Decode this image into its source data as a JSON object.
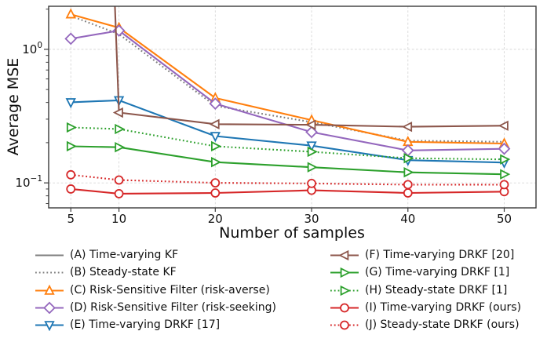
{
  "chart_data": {
    "type": "line",
    "title": "",
    "xlabel": "Number of samples",
    "ylabel": "Average MSE",
    "xscale": "linear",
    "yscale": "log",
    "x": [
      5,
      10,
      20,
      30,
      40,
      50
    ],
    "xticks": [
      5,
      10,
      20,
      30,
      40,
      50
    ],
    "xlim": [
      2.7,
      53.3
    ],
    "ylim": [
      0.065,
      2.1
    ],
    "ytick_values": [
      1,
      0.1
    ],
    "ytick_labels": [
      "10⁰",
      "10⁻¹"
    ],
    "ytick_exponents": [
      0,
      -1
    ],
    "grid": true,
    "grid_style": "dashed light gray at x ticks and decade y ticks",
    "series": [
      {
        "id": "A",
        "label": "(A) Time-varying KF",
        "color": "#7f7f7f",
        "line": "solid",
        "marker": "none",
        "values": [
          null,
          null,
          null,
          null,
          null,
          null
        ],
        "note": "lies above visible y-range; not drawn inside axes"
      },
      {
        "id": "B",
        "label": "(B) Steady-state KF",
        "color": "#7f7f7f",
        "line": "dotted",
        "marker": "none",
        "values": [
          1.78,
          1.3,
          0.377,
          0.285,
          0.207,
          0.203
        ]
      },
      {
        "id": "C",
        "label": "(C) Risk-Sensitive Filter (risk-averse)",
        "color": "#ff7f0e",
        "line": "solid",
        "marker": "triangle-up",
        "values": [
          1.83,
          1.45,
          0.432,
          0.295,
          0.203,
          0.197
        ]
      },
      {
        "id": "D",
        "label": "(D) Risk-Sensitive Filter (risk-seeking)",
        "color": "#9467bd",
        "line": "solid",
        "marker": "diamond",
        "values": [
          1.2,
          1.38,
          0.392,
          0.24,
          0.175,
          0.18
        ]
      },
      {
        "id": "E",
        "label": "(E) Time-varying DRKF [17]",
        "color": "#1f77b4",
        "line": "solid",
        "marker": "triangle-down",
        "values": [
          0.401,
          0.415,
          0.224,
          0.19,
          0.148,
          0.142
        ]
      },
      {
        "id": "F",
        "label": "(F) Time-varying DRKF [20]",
        "color": "#8c564b",
        "line": "solid",
        "marker": "triangle-left",
        "values": [
          1000000000,
          0.336,
          0.275,
          0.272,
          0.263,
          0.268
        ],
        "note": "first point (n=5) far off-scale; line enters plot near-vertically just left of n=10"
      },
      {
        "id": "G",
        "label": "(G) Time-varying DRKF [1]",
        "color": "#2ca02c",
        "line": "solid",
        "marker": "triangle-right",
        "values": [
          0.188,
          0.185,
          0.143,
          0.131,
          0.12,
          0.116
        ]
      },
      {
        "id": "H",
        "label": "(H) Steady-state DRKF [1]",
        "color": "#2ca02c",
        "line": "dotted",
        "marker": "triangle-right",
        "values": [
          0.26,
          0.253,
          0.188,
          0.171,
          0.153,
          0.15
        ]
      },
      {
        "id": "I",
        "label": "(I) Time-varying DRKF (ours)",
        "color": "#d62728",
        "line": "solid",
        "marker": "circle",
        "values": [
          0.09,
          0.083,
          0.084,
          0.088,
          0.084,
          0.086
        ]
      },
      {
        "id": "J",
        "label": "(J) Steady-state DRKF (ours)",
        "color": "#d62728",
        "line": "dotted",
        "marker": "circle",
        "values": [
          0.115,
          0.105,
          0.1,
          0.099,
          0.097,
          0.097
        ]
      }
    ],
    "legend_position": "below chart, two columns, no frame"
  },
  "legend": {
    "column1_ids": [
      "A",
      "B",
      "C",
      "D",
      "E"
    ],
    "column2_ids": [
      "F",
      "G",
      "H",
      "I",
      "J"
    ]
  },
  "style": {
    "spine_color": "#3a3a3a",
    "grid_color": "#d7d7d7",
    "tick_label_color": "#111111",
    "background": "#ffffff"
  }
}
